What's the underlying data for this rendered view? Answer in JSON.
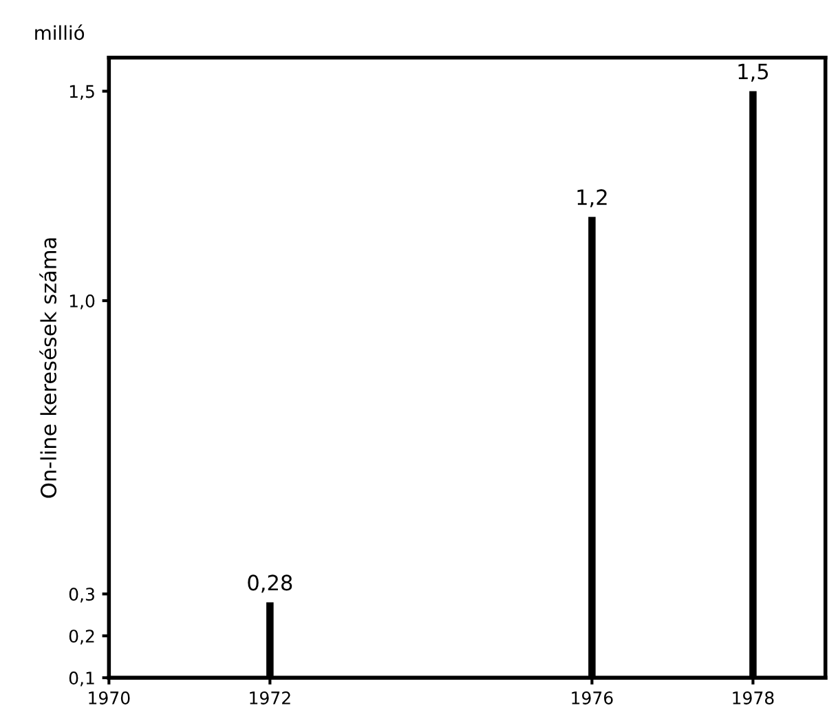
{
  "chart_data": {
    "type": "bar",
    "ylabel": "On-line keresések száma",
    "annotations": [
      "millió"
    ],
    "x": [
      1972,
      1976,
      1978
    ],
    "values": [
      0.28,
      1.2,
      1.5
    ],
    "value_labels": [
      "0,28",
      "1,2",
      "1,5"
    ],
    "color": "#000000",
    "xlim": [
      1970,
      1978.9
    ],
    "xticks": [
      1970,
      1972,
      1976,
      1978
    ],
    "ylim": [
      0.1,
      1.58
    ],
    "yticks": [
      {
        "value": 0.1,
        "label": "0,1"
      },
      {
        "value": 0.2,
        "label": "0,2"
      },
      {
        "value": 0.3,
        "label": "0,3"
      },
      {
        "value": 1.0,
        "label": "1,0"
      },
      {
        "value": 1.5,
        "label": "1,5"
      }
    ],
    "grid": false,
    "legend": false
  }
}
